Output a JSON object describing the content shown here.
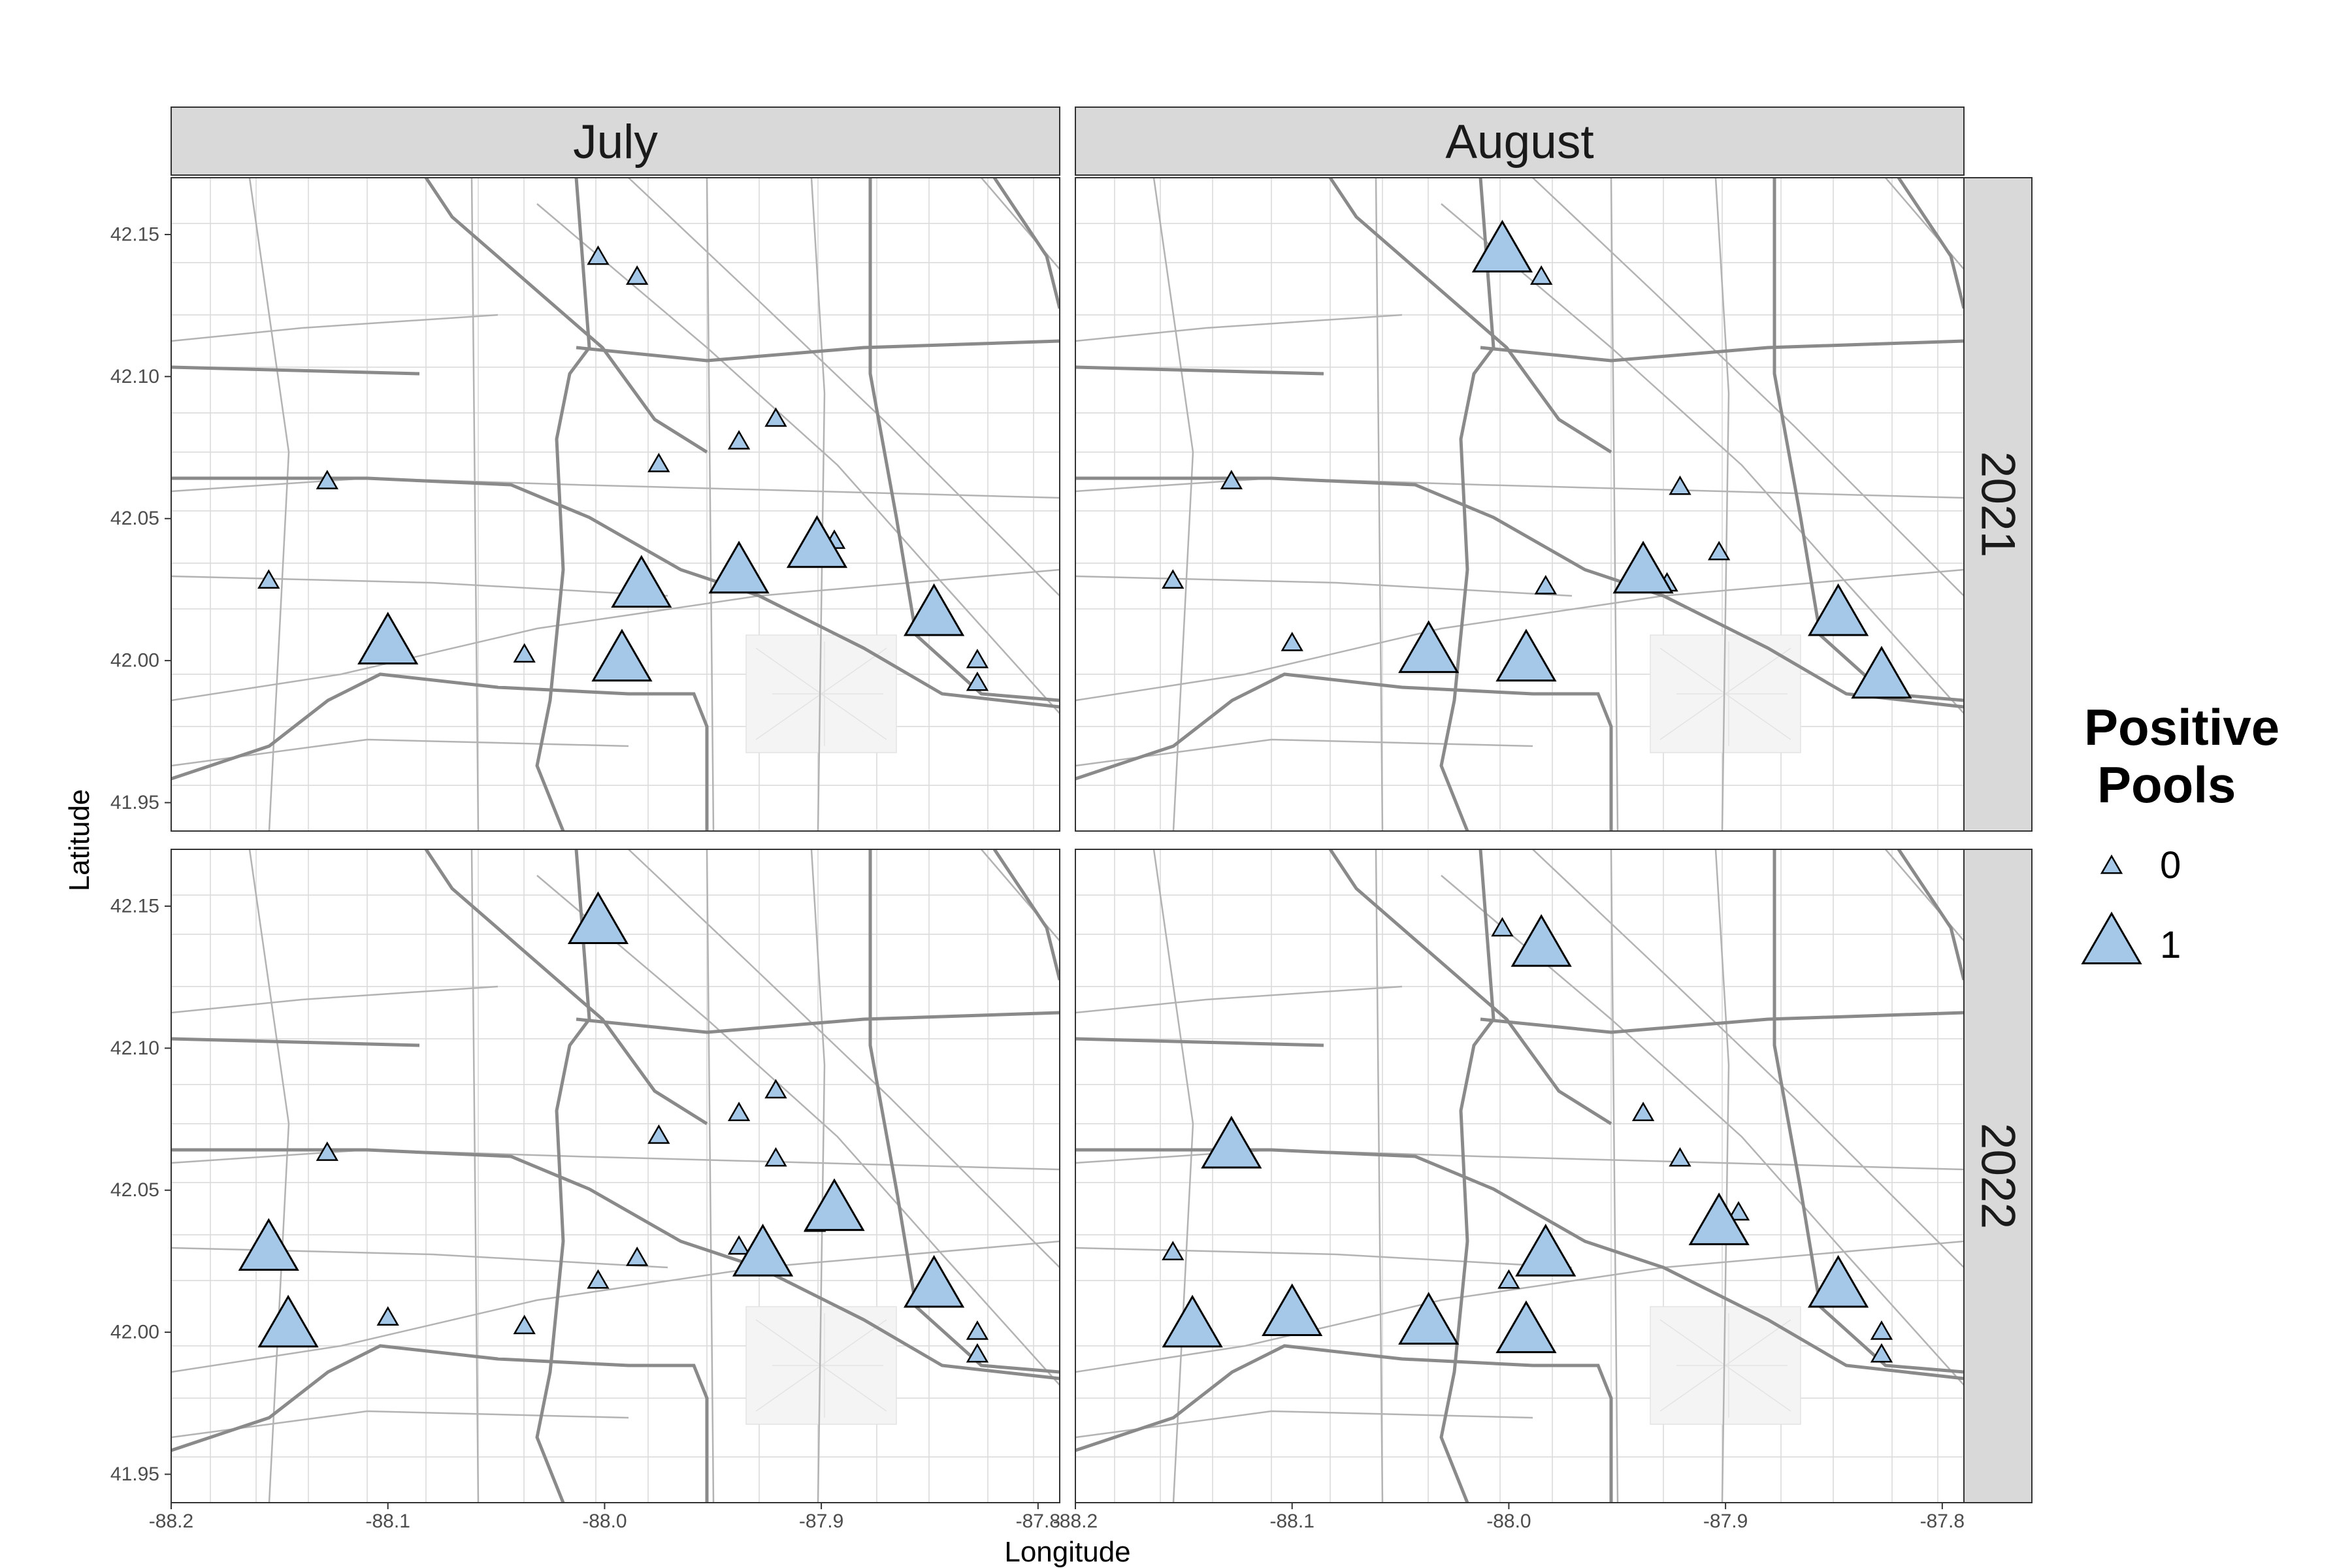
{
  "title": "",
  "axes": {
    "xlabel": "Longitude",
    "ylabel": "Latitude",
    "xlim": [
      -88.2,
      -87.79
    ],
    "ylim": [
      41.94,
      42.17
    ],
    "xticks": [
      -88.2,
      -88.1,
      -88.0,
      -87.9,
      -87.8
    ],
    "xtick_labels": [
      "-88.2",
      "-88.1",
      "-88.0",
      "-87.9",
      "-87.8"
    ],
    "yticks": [
      41.95,
      42.0,
      42.05,
      42.1,
      42.15
    ],
    "ytick_labels": [
      "41.95",
      "42.00",
      "42.05",
      "42.10",
      "42.15"
    ]
  },
  "facets": {
    "columns": [
      "July",
      "August"
    ],
    "rows": [
      "2021",
      "2022"
    ]
  },
  "legend": {
    "title_line1": "Positive",
    "title_line2": "Pools",
    "placement": "right",
    "entries": [
      {
        "label": "0",
        "value": 0
      },
      {
        "label": "1",
        "value": 1
      }
    ]
  },
  "colors": {
    "marker_fill": "#a6c8e8",
    "marker_stroke": "#000000",
    "strip_fill": "#d9d9d9",
    "strip_text": "#1a1a1a",
    "road_major": "#888888",
    "road_minor": "#b3b3b3",
    "road_faint": "#d9d9d9"
  },
  "basemap": "street map (grey roads), Chicago O'Hare area",
  "chart_data": {
    "type": "scatter",
    "marker": "triangle",
    "size_variable": "Positive Pools",
    "panels": [
      {
        "column": "July",
        "row": "2021",
        "points": [
          {
            "lon": -88.003,
            "lat": 42.142,
            "positive": 0
          },
          {
            "lon": -87.985,
            "lat": 42.135,
            "positive": 0
          },
          {
            "lon": -87.921,
            "lat": 42.085,
            "positive": 0
          },
          {
            "lon": -87.938,
            "lat": 42.077,
            "positive": 0
          },
          {
            "lon": -87.975,
            "lat": 42.069,
            "positive": 0
          },
          {
            "lon": -88.128,
            "lat": 42.063,
            "positive": 0
          },
          {
            "lon": -87.894,
            "lat": 42.042,
            "positive": 0
          },
          {
            "lon": -88.155,
            "lat": 42.028,
            "positive": 0
          },
          {
            "lon": -88.037,
            "lat": 42.002,
            "positive": 0
          },
          {
            "lon": -87.828,
            "lat": 42.0,
            "positive": 0
          },
          {
            "lon": -87.828,
            "lat": 41.992,
            "positive": 0
          },
          {
            "lon": -87.902,
            "lat": 42.04,
            "positive": 1
          },
          {
            "lon": -87.938,
            "lat": 42.031,
            "positive": 1
          },
          {
            "lon": -87.983,
            "lat": 42.026,
            "positive": 1
          },
          {
            "lon": -87.848,
            "lat": 42.016,
            "positive": 1
          },
          {
            "lon": -88.1,
            "lat": 42.006,
            "positive": 1
          },
          {
            "lon": -87.992,
            "lat": 42.0,
            "positive": 1
          }
        ]
      },
      {
        "column": "August",
        "row": "2021",
        "points": [
          {
            "lon": -87.985,
            "lat": 42.135,
            "positive": 0
          },
          {
            "lon": -88.128,
            "lat": 42.063,
            "positive": 0
          },
          {
            "lon": -87.921,
            "lat": 42.061,
            "positive": 0
          },
          {
            "lon": -87.903,
            "lat": 42.038,
            "positive": 0
          },
          {
            "lon": -88.155,
            "lat": 42.028,
            "positive": 0
          },
          {
            "lon": -87.927,
            "lat": 42.027,
            "positive": 0
          },
          {
            "lon": -87.983,
            "lat": 42.026,
            "positive": 0
          },
          {
            "lon": -88.1,
            "lat": 42.006,
            "positive": 0
          },
          {
            "lon": -88.003,
            "lat": 42.144,
            "positive": 1
          },
          {
            "lon": -87.938,
            "lat": 42.031,
            "positive": 1
          },
          {
            "lon": -87.848,
            "lat": 42.016,
            "positive": 1
          },
          {
            "lon": -88.037,
            "lat": 42.003,
            "positive": 1
          },
          {
            "lon": -87.992,
            "lat": 42.0,
            "positive": 1
          },
          {
            "lon": -87.828,
            "lat": 41.994,
            "positive": 1
          }
        ]
      },
      {
        "column": "July",
        "row": "2022",
        "points": [
          {
            "lon": -87.921,
            "lat": 42.085,
            "positive": 0
          },
          {
            "lon": -87.938,
            "lat": 42.077,
            "positive": 0
          },
          {
            "lon": -87.975,
            "lat": 42.069,
            "positive": 0
          },
          {
            "lon": -88.128,
            "lat": 42.063,
            "positive": 0
          },
          {
            "lon": -87.921,
            "lat": 42.061,
            "positive": 0
          },
          {
            "lon": -87.903,
            "lat": 42.038,
            "positive": 0
          },
          {
            "lon": -87.938,
            "lat": 42.03,
            "positive": 0
          },
          {
            "lon": -87.985,
            "lat": 42.026,
            "positive": 0
          },
          {
            "lon": -88.003,
            "lat": 42.018,
            "positive": 0
          },
          {
            "lon": -88.1,
            "lat": 42.005,
            "positive": 0
          },
          {
            "lon": -88.037,
            "lat": 42.002,
            "positive": 0
          },
          {
            "lon": -87.828,
            "lat": 42.0,
            "positive": 0
          },
          {
            "lon": -87.828,
            "lat": 41.992,
            "positive": 0
          },
          {
            "lon": -88.003,
            "lat": 42.144,
            "positive": 1
          },
          {
            "lon": -87.894,
            "lat": 42.043,
            "positive": 1
          },
          {
            "lon": -88.155,
            "lat": 42.029,
            "positive": 1
          },
          {
            "lon": -87.927,
            "lat": 42.027,
            "positive": 1
          },
          {
            "lon": -87.848,
            "lat": 42.016,
            "positive": 1
          },
          {
            "lon": -88.146,
            "lat": 42.002,
            "positive": 1
          }
        ]
      },
      {
        "column": "August",
        "row": "2022",
        "points": [
          {
            "lon": -88.003,
            "lat": 42.142,
            "positive": 0
          },
          {
            "lon": -87.938,
            "lat": 42.077,
            "positive": 0
          },
          {
            "lon": -87.921,
            "lat": 42.061,
            "positive": 0
          },
          {
            "lon": -87.894,
            "lat": 42.042,
            "positive": 0
          },
          {
            "lon": -88.155,
            "lat": 42.028,
            "positive": 0
          },
          {
            "lon": -88.0,
            "lat": 42.018,
            "positive": 0
          },
          {
            "lon": -87.828,
            "lat": 42.0,
            "positive": 0
          },
          {
            "lon": -87.828,
            "lat": 41.992,
            "positive": 0
          },
          {
            "lon": -87.985,
            "lat": 42.136,
            "positive": 1
          },
          {
            "lon": -88.128,
            "lat": 42.065,
            "positive": 1
          },
          {
            "lon": -87.903,
            "lat": 42.038,
            "positive": 1
          },
          {
            "lon": -87.983,
            "lat": 42.027,
            "positive": 1
          },
          {
            "lon": -87.848,
            "lat": 42.016,
            "positive": 1
          },
          {
            "lon": -88.1,
            "lat": 42.006,
            "positive": 1
          },
          {
            "lon": -88.037,
            "lat": 42.003,
            "positive": 1
          },
          {
            "lon": -88.146,
            "lat": 42.002,
            "positive": 1
          },
          {
            "lon": -87.992,
            "lat": 42.0,
            "positive": 1
          }
        ]
      }
    ]
  }
}
